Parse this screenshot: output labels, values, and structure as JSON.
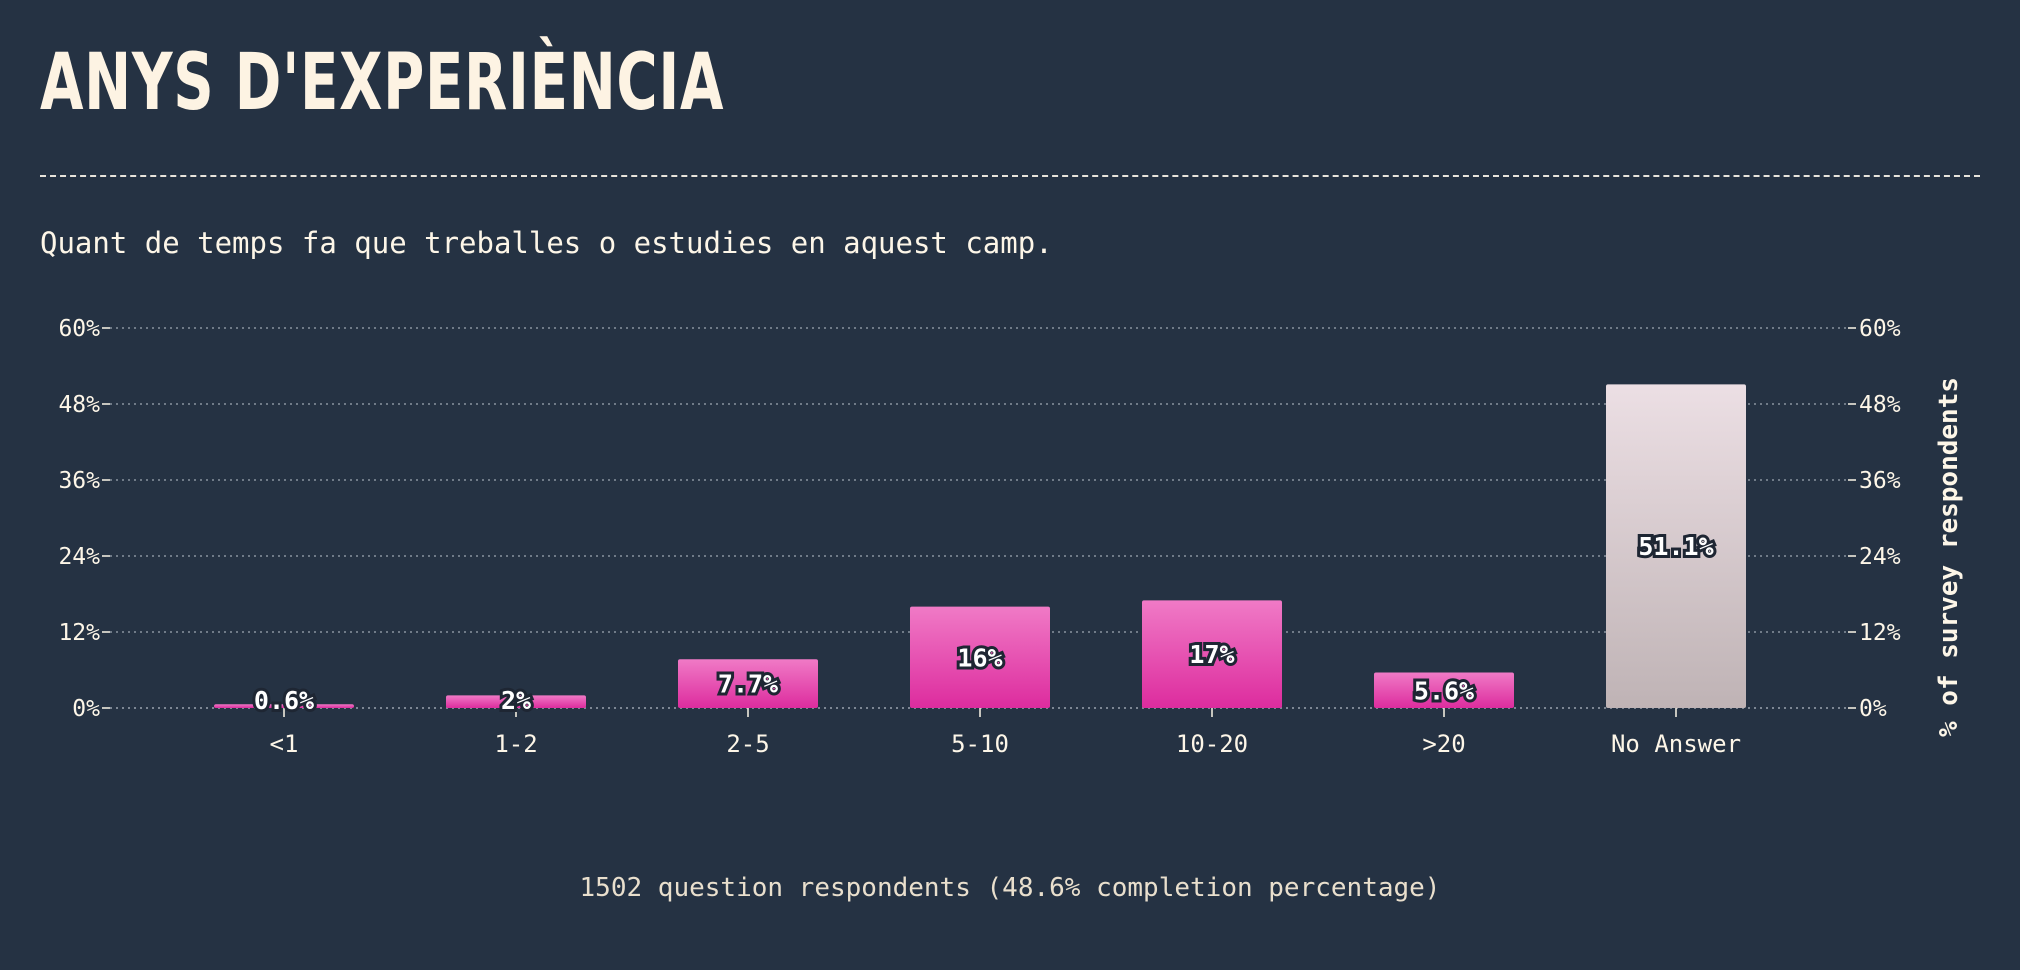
{
  "title": "ANYS D'EXPERIÈNCIA",
  "subtitle": "Quant de temps fa que treballes o estudies en aquest camp.",
  "footer": "1502 question respondents (48.6% completion percentage)",
  "colors": {
    "background": "#253243",
    "bar_top": "#f07ac6",
    "bar_bottom": "#dd2c9e",
    "no_answer_top": "#ecdfe4",
    "no_answer_bottom": "#bfb3b5",
    "grid": "#8a93a0"
  },
  "chart_data": {
    "type": "bar",
    "categories": [
      "<1",
      "1-2",
      "2-5",
      "5-10",
      "10-20",
      ">20",
      "No Answer"
    ],
    "values": [
      0.6,
      2,
      7.7,
      16,
      17,
      5.6,
      51.1
    ],
    "data_labels": [
      "0.6%",
      "2%",
      "7.7%",
      "16%",
      "17%",
      "5.6%",
      "51.1%"
    ],
    "ylim": [
      0,
      60
    ],
    "yticks": [
      "0%",
      "12%",
      "24%",
      "36%",
      "48%",
      "60%"
    ],
    "ylabel": "% of survey respondents",
    "grid": true
  }
}
